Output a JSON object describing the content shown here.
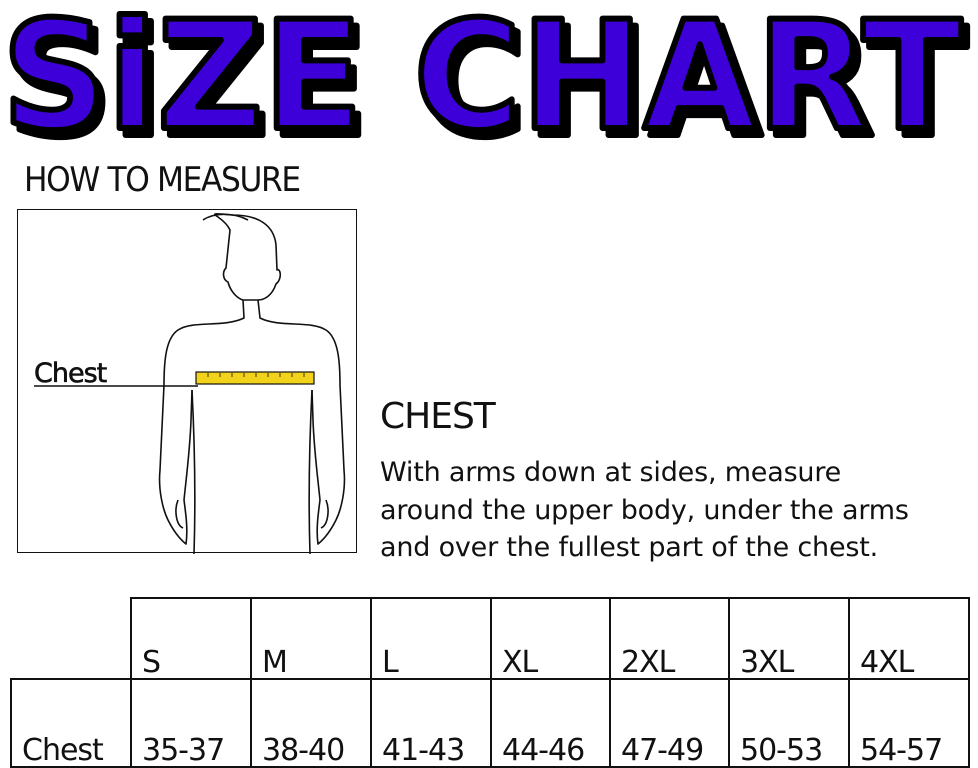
{
  "title": "SiZE CHART",
  "colors": {
    "title_fill": "#3d00d9",
    "title_outline": "#000000",
    "tape": "#f2d21b"
  },
  "how_to_measure": "HOW TO MEASURE",
  "figure": {
    "label": "Chest"
  },
  "chest": {
    "heading": "CHEST",
    "description": [
      "With arms down at sides, measure",
      "around the upper body, under the arms",
      "and over the fullest part of the chest."
    ]
  },
  "table": {
    "sizes": [
      "S",
      "M",
      "L",
      "XL",
      "2XL",
      "3XL",
      "4XL"
    ],
    "rows": [
      {
        "label": "Chest",
        "values": [
          "35-37",
          "38-40",
          "41-43",
          "44-46",
          "47-49",
          "50-53",
          "54-57"
        ]
      }
    ]
  }
}
